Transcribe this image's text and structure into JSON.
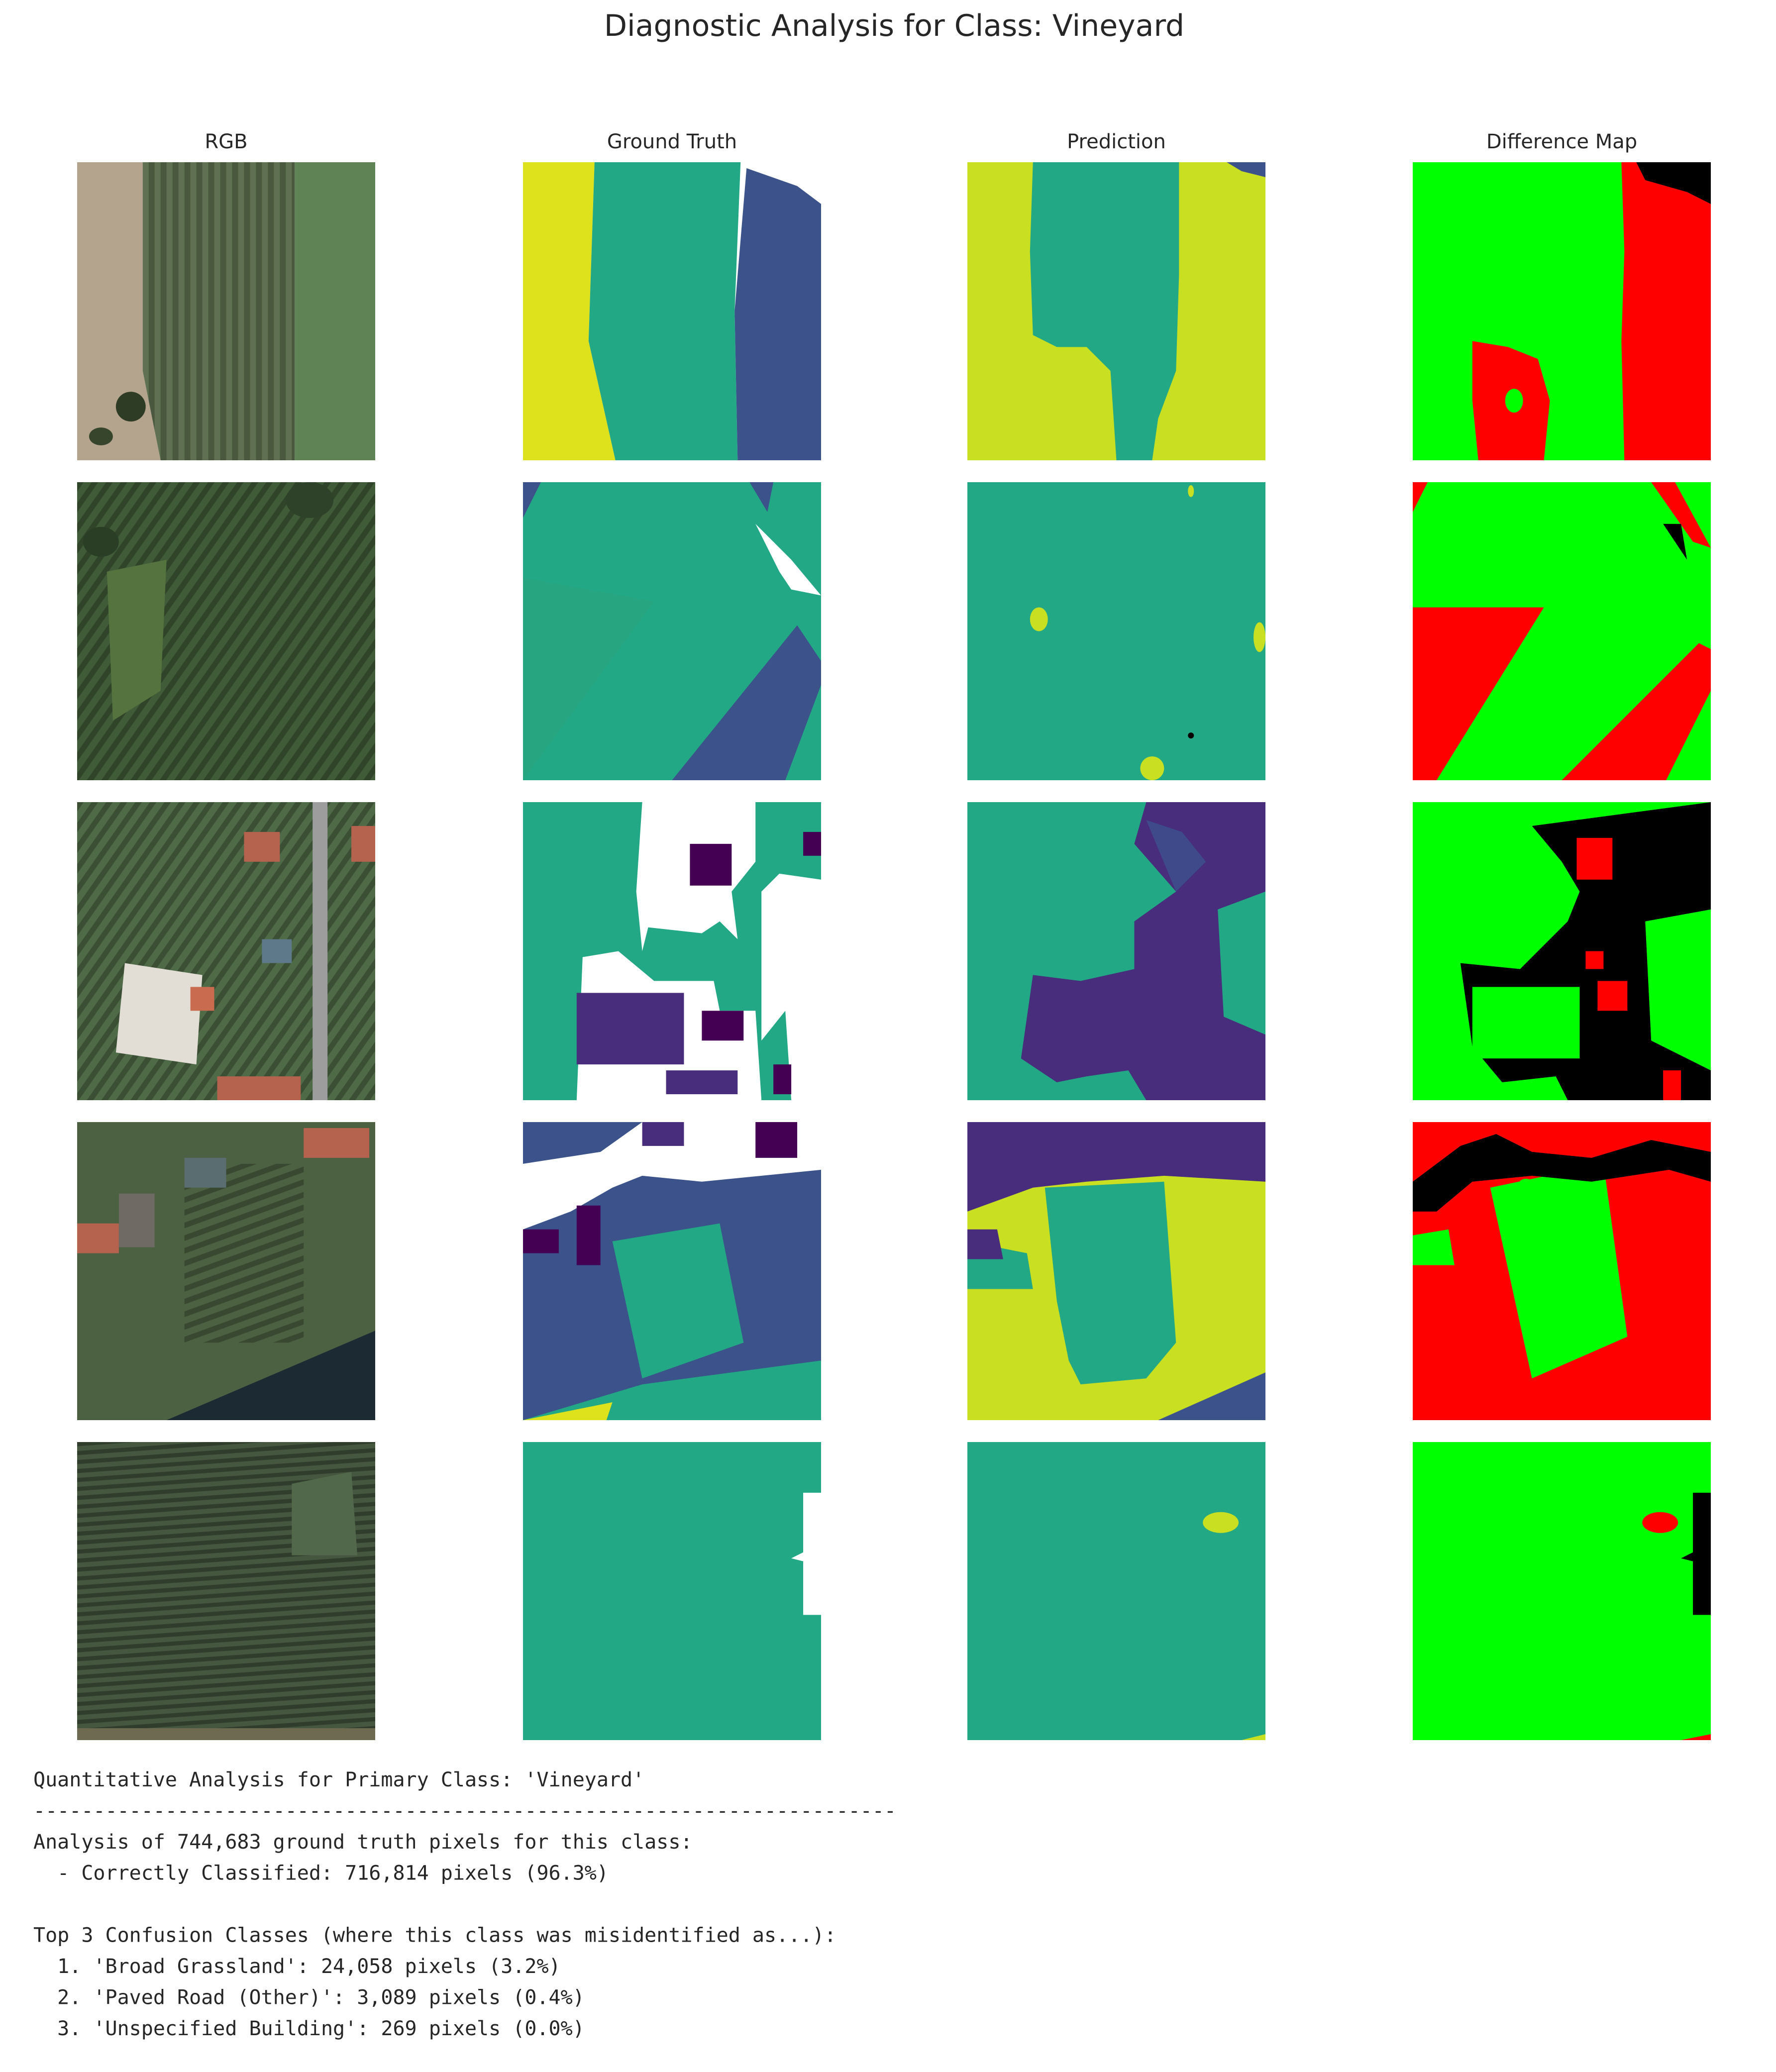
{
  "title": "Diagnostic Analysis for Class: Vineyard",
  "columns": [
    "RGB",
    "Ground Truth",
    "Prediction",
    "Difference Map"
  ],
  "report": {
    "heading": "Quantitative Analysis for Primary Class: 'Vineyard'",
    "separator": "------------------------------------------------------------------------",
    "summary": [
      "Analysis of 744,683 ground truth pixels for this class:",
      "  - Correctly Classified: 716,814 pixels (96.3%)"
    ],
    "confusion_heading": "Top 3 Confusion Classes (where this class was misidentified as...):",
    "confusion": [
      "  1. 'Broad Grassland': 24,058 pixels (3.2%)",
      "  2. 'Paved Road (Other)': 3,089 pixels (0.4%)",
      "  3. 'Unspecified Building': 269 pixels (0.0%)"
    ]
  }
}
